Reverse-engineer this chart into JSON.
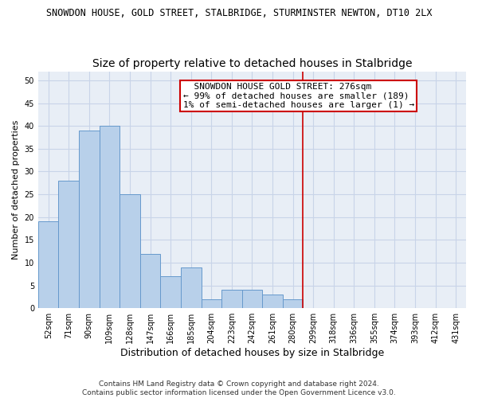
{
  "title": "SNOWDON HOUSE, GOLD STREET, STALBRIDGE, STURMINSTER NEWTON, DT10 2LX",
  "subtitle": "Size of property relative to detached houses in Stalbridge",
  "xlabel": "Distribution of detached houses by size in Stalbridge",
  "ylabel": "Number of detached properties",
  "bar_labels": [
    "52sqm",
    "71sqm",
    "90sqm",
    "109sqm",
    "128sqm",
    "147sqm",
    "166sqm",
    "185sqm",
    "204sqm",
    "223sqm",
    "242sqm",
    "261sqm",
    "280sqm",
    "299sqm",
    "318sqm",
    "336sqm",
    "355sqm",
    "374sqm",
    "393sqm",
    "412sqm",
    "431sqm"
  ],
  "bar_values": [
    19,
    28,
    39,
    40,
    25,
    12,
    7,
    9,
    2,
    4,
    4,
    3,
    2,
    0,
    0,
    0,
    0,
    0,
    0,
    0,
    0
  ],
  "bar_color": "#b8d0ea",
  "bar_edge_color": "#6699cc",
  "vline_x": 12.5,
  "vline_color": "#cc0000",
  "annotation_text": "  SNOWDON HOUSE GOLD STREET: 276sqm  \n← 99% of detached houses are smaller (189)\n1% of semi-detached houses are larger (1) →",
  "ylim": [
    0,
    52
  ],
  "yticks": [
    0,
    5,
    10,
    15,
    20,
    25,
    30,
    35,
    40,
    45,
    50
  ],
  "grid_color": "#c8d4e8",
  "background_color": "#e8eef6",
  "footer_line1": "Contains HM Land Registry data © Crown copyright and database right 2024.",
  "footer_line2": "Contains public sector information licensed under the Open Government Licence v3.0.",
  "title_fontsize": 8.5,
  "subtitle_fontsize": 10,
  "xlabel_fontsize": 9,
  "ylabel_fontsize": 8,
  "tick_fontsize": 7,
  "annotation_fontsize": 8,
  "footer_fontsize": 6.5
}
